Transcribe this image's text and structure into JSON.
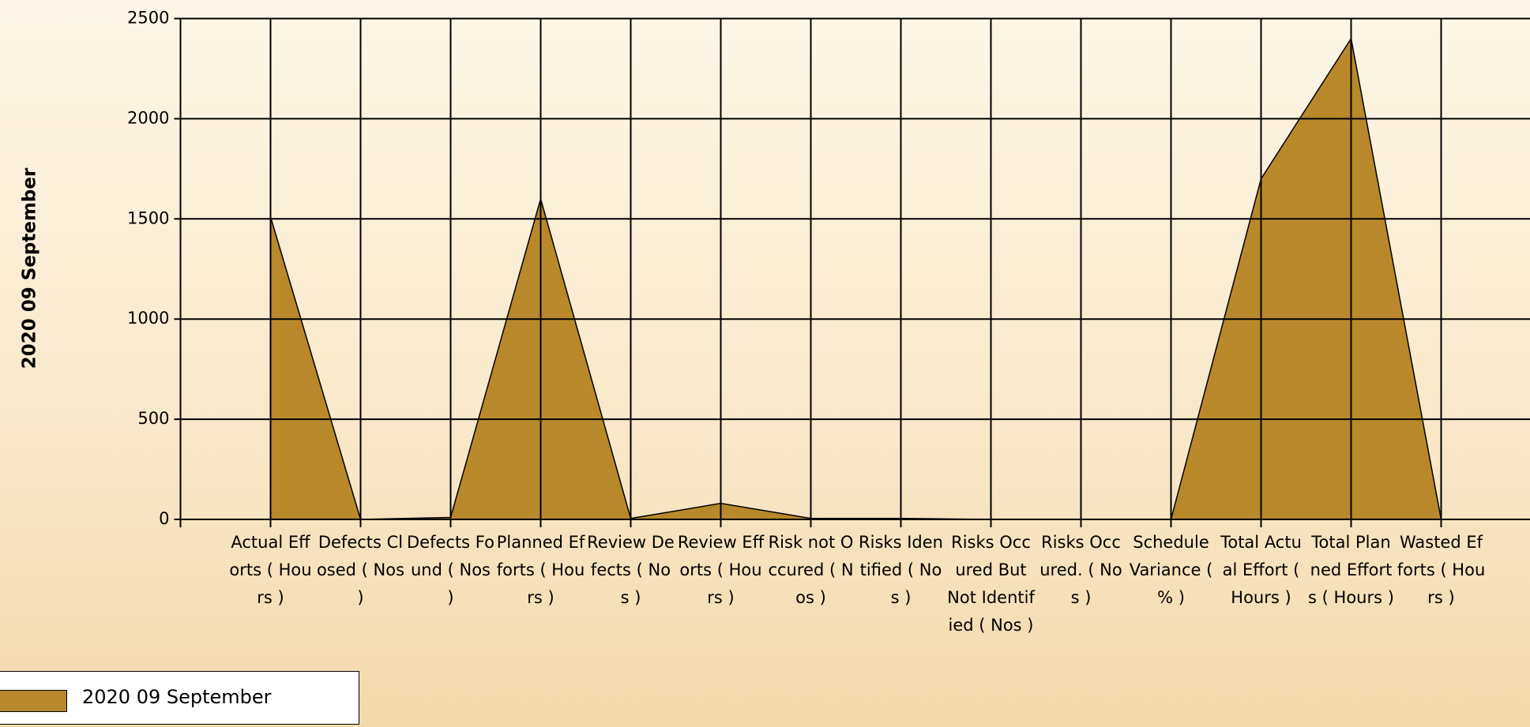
{
  "chart_data": {
    "type": "area",
    "y_label": "2020 09 September",
    "categories": [
      "Actual Efforts ( Hours )",
      "Defects Closed ( Nos )",
      "Defects Found ( Nos )",
      "Planned Efforts ( Hours )",
      "Review Defects ( Nos )",
      "Review Efforts ( Hours )",
      "Risk not Occured ( Nos )",
      "Risks Identified ( Nos )",
      "Risks Occured But Not Identified ( Nos )",
      "Risks Occured. ( Nos )",
      "Schedule Variance ( % )",
      "Total Actual Effort ( Hours )",
      "Total Planned Efforts ( Hours )",
      "Wasted Efforts ( Hours )"
    ],
    "series": [
      {
        "name": "2020 09 September",
        "color": "#b8882a",
        "values": [
          1510,
          0,
          10,
          1600,
          5,
          80,
          5,
          5,
          0,
          0,
          0,
          1700,
          2400,
          0
        ]
      }
    ],
    "ylim": [
      0,
      2500
    ],
    "yticks": [
      0,
      500,
      1000,
      1500,
      2000,
      2500
    ],
    "grid": true
  }
}
